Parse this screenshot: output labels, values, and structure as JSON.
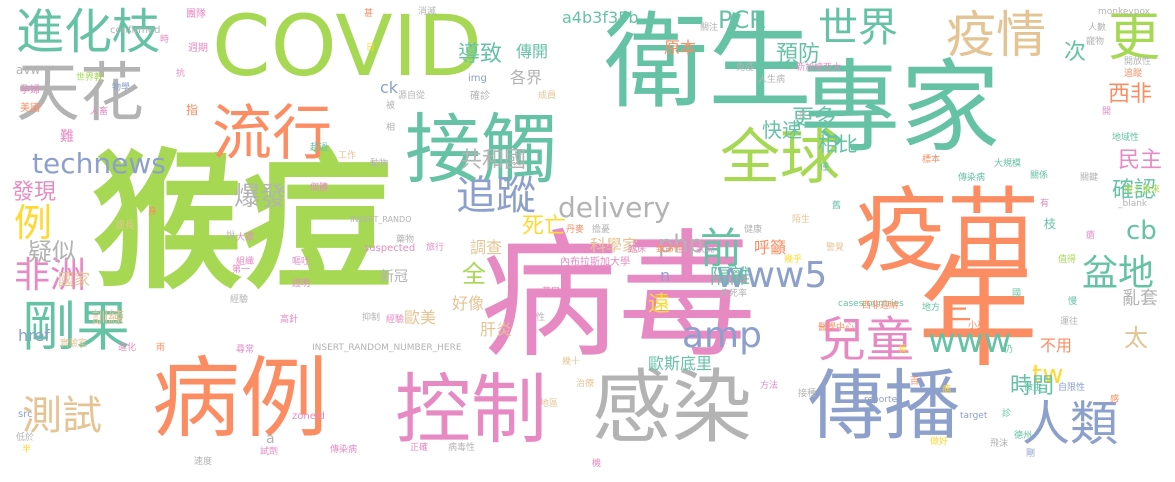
{
  "palette": {
    "green": "#a6d854",
    "orange": "#fc8d62",
    "pink": "#e78ac3",
    "teal": "#66c2a5",
    "blue": "#8da0cb",
    "yellow": "#ffd92f",
    "tan": "#e5c494",
    "gray": "#b3b3b3"
  },
  "words": [
    {
      "text": "猴痘",
      "color": "green"
    },
    {
      "text": "病毒",
      "color": "pink"
    },
    {
      "text": "專家",
      "color": "teal"
    },
    {
      "text": "衛生",
      "color": "teal"
    },
    {
      "text": "COVID",
      "color": "green"
    },
    {
      "text": "天花",
      "color": "gray"
    },
    {
      "text": "疫苗",
      "color": "orange"
    },
    {
      "text": "年",
      "color": "orange"
    },
    {
      "text": "病例",
      "color": "orange"
    },
    {
      "text": "接觸",
      "color": "teal"
    },
    {
      "text": "控制",
      "color": "pink"
    },
    {
      "text": "感染",
      "color": "gray"
    },
    {
      "text": "傳播",
      "color": "blue"
    },
    {
      "text": "全球",
      "color": "green"
    },
    {
      "text": "流行",
      "color": "orange"
    },
    {
      "text": "疫情",
      "color": "tan"
    },
    {
      "text": "世界",
      "color": "teal"
    },
    {
      "text": "進化枝",
      "color": "teal"
    },
    {
      "text": "剛果",
      "color": "teal"
    },
    {
      "text": "人類",
      "color": "blue"
    },
    {
      "text": "兒童",
      "color": "pink"
    },
    {
      "text": "測試",
      "color": "tan"
    },
    {
      "text": "追蹤",
      "color": "blue"
    },
    {
      "text": "www5",
      "color": "blue"
    },
    {
      "text": "更",
      "color": "green"
    },
    {
      "text": "technews",
      "color": "blue"
    },
    {
      "text": "例",
      "color": "yellow"
    },
    {
      "text": "非洲",
      "color": "pink"
    },
    {
      "text": "delivery",
      "color": "gray"
    },
    {
      "text": "前",
      "color": "teal"
    },
    {
      "text": "盆地",
      "color": "teal"
    },
    {
      "text": "www",
      "color": "teal"
    },
    {
      "text": "三",
      "color": "orange"
    },
    {
      "text": "amp",
      "color": "blue"
    },
    {
      "text": "tw",
      "color": "yellow"
    },
    {
      "text": "cb",
      "color": "teal"
    },
    {
      "text": "php",
      "color": "gray"
    },
    {
      "text": "太",
      "color": "tan"
    },
    {
      "text": "PCR",
      "color": "teal"
    },
    {
      "text": "a4b3f35b",
      "color": "teal"
    },
    {
      "text": "導致",
      "color": "teal"
    },
    {
      "text": "傳開",
      "color": "teal"
    },
    {
      "text": "預防",
      "color": "teal"
    },
    {
      "text": "共和國",
      "color": "gray"
    },
    {
      "text": "發現",
      "color": "pink"
    },
    {
      "text": "爆發",
      "color": "gray"
    },
    {
      "text": "疑似",
      "color": "gray"
    },
    {
      "text": "死亡",
      "color": "yellow"
    },
    {
      "text": "更多",
      "color": "teal"
    },
    {
      "text": "相比",
      "color": "teal"
    },
    {
      "text": "快速",
      "color": "teal"
    },
    {
      "text": "西非",
      "color": "orange"
    },
    {
      "text": "民主",
      "color": "pink"
    },
    {
      "text": "確認",
      "color": "teal"
    },
    {
      "text": "次",
      "color": "teal"
    },
    {
      "text": "全",
      "color": "green"
    },
    {
      "text": "隔離",
      "color": "teal"
    },
    {
      "text": "呼籲",
      "color": "orange"
    },
    {
      "text": "亂套",
      "color": "gray"
    },
    {
      "text": "時間",
      "color": "teal"
    },
    {
      "text": "歐美",
      "color": "tan"
    },
    {
      "text": "遠",
      "color": "yellow"
    },
    {
      "text": "好像",
      "color": "tan"
    },
    {
      "text": "肝炎",
      "color": "tan"
    },
    {
      "text": "調查",
      "color": "tan"
    },
    {
      "text": "科學家",
      "color": "tan"
    },
    {
      "text": "歐斯底里",
      "color": "teal"
    },
    {
      "text": "訓練",
      "color": "tan"
    },
    {
      "text": "國家",
      "color": "tan"
    },
    {
      "text": "href",
      "color": "blue"
    },
    {
      "text": "不用",
      "color": "orange"
    },
    {
      "text": "各界",
      "color": "gray"
    },
    {
      "text": "原本",
      "color": "orange"
    },
    {
      "text": "ck",
      "color": "blue"
    },
    {
      "text": "新冠",
      "color": "gray"
    },
    {
      "text": "n",
      "color": "blue"
    },
    {
      "text": "a",
      "color": "gray"
    },
    {
      "text": "INSERT_RANDOM_NUMBER_HERE",
      "color": "gray"
    },
    {
      "text": "INSERT_RANDO",
      "color": "gray"
    },
    {
      "text": "suspected",
      "color": "pink"
    },
    {
      "text": "內布拉斯加大學",
      "color": "pink"
    },
    {
      "text": "confirmed",
      "color": "gray"
    },
    {
      "text": "avw",
      "color": "gray"
    },
    {
      "text": "monkeypox",
      "color": "gray"
    },
    {
      "text": "zoneid",
      "color": "pink"
    },
    {
      "text": "src",
      "color": "blue"
    },
    {
      "text": "reported",
      "color": "blue"
    },
    {
      "text": "target",
      "color": "blue"
    },
    {
      "text": "_blank",
      "color": "gray"
    },
    {
      "text": "cases",
      "color": "teal"
    },
    {
      "text": "countries",
      "color": "teal"
    },
    {
      "text": "img",
      "color": "blue"
    },
    {
      "text": "團隊",
      "color": "pink"
    },
    {
      "text": "週期",
      "color": "pink"
    },
    {
      "text": "世界教",
      "color": "green"
    },
    {
      "text": "孕婦",
      "color": "pink"
    },
    {
      "text": "美國",
      "color": "orange"
    },
    {
      "text": "人畜",
      "color": "pink"
    },
    {
      "text": "物學",
      "color": "blue"
    },
    {
      "text": "難",
      "color": "pink"
    },
    {
      "text": "源自從",
      "color": "gray"
    },
    {
      "text": "確診",
      "color": "gray"
    },
    {
      "text": "成員",
      "color": "tan"
    },
    {
      "text": "免疫",
      "color": "gray"
    },
    {
      "text": "人生病",
      "color": "gray"
    },
    {
      "text": "新加坡亞太",
      "color": "pink"
    },
    {
      "text": "追蹤",
      "color": "orange"
    },
    {
      "text": "開放性",
      "color": "gray"
    },
    {
      "text": "寵物",
      "color": "gray"
    },
    {
      "text": "人數",
      "color": "gray"
    },
    {
      "text": "地域性",
      "color": "teal"
    },
    {
      "text": "傳染病",
      "color": "teal"
    },
    {
      "text": "大規模",
      "color": "teal"
    },
    {
      "text": "關係",
      "color": "teal"
    },
    {
      "text": "關鍵",
      "color": "gray"
    },
    {
      "text": "捲土重來",
      "color": "green"
    },
    {
      "text": "醫學中心",
      "color": "orange"
    },
    {
      "text": "西非迦納",
      "color": "orange"
    },
    {
      "text": "致命性",
      "color": "orange"
    },
    {
      "text": "狀況",
      "color": "pink"
    },
    {
      "text": "臨床",
      "color": "pink"
    },
    {
      "text": "幾乎",
      "color": "yellow"
    },
    {
      "text": "病死率",
      "color": "gray"
    },
    {
      "text": "方法",
      "color": "pink"
    },
    {
      "text": "接種",
      "color": "gray"
    },
    {
      "text": "微生",
      "color": "teal"
    },
    {
      "text": "自限性",
      "color": "blue"
    },
    {
      "text": "德州",
      "color": "teal"
    },
    {
      "text": "飛沫",
      "color": "gray"
    },
    {
      "text": "病毒性",
      "color": "gray"
    },
    {
      "text": "速度",
      "color": "gray"
    },
    {
      "text": "試劑",
      "color": "pink"
    },
    {
      "text": "低於",
      "color": "gray"
    },
    {
      "text": "正確",
      "color": "pink"
    },
    {
      "text": "實驗室",
      "color": "tan"
    },
    {
      "text": "進化",
      "color": "pink"
    },
    {
      "text": "尋常",
      "color": "pink"
    },
    {
      "text": "高針",
      "color": "pink"
    },
    {
      "text": "證明",
      "color": "pink"
    },
    {
      "text": "組織",
      "color": "pink"
    },
    {
      "text": "大眾",
      "color": "pink"
    },
    {
      "text": "嘔吐",
      "color": "pink"
    },
    {
      "text": "工作",
      "color": "tan"
    },
    {
      "text": "超過",
      "color": "teal"
    },
    {
      "text": "動物",
      "color": "gray"
    },
    {
      "text": "藥物",
      "color": "gray"
    },
    {
      "text": "丹麥",
      "color": "orange"
    },
    {
      "text": "陌生",
      "color": "tan"
    },
    {
      "text": "健康",
      "color": "gray"
    },
    {
      "text": "警覺",
      "color": "tan"
    },
    {
      "text": "標本",
      "color": "orange"
    },
    {
      "text": "小巫",
      "color": "orange"
    },
    {
      "text": "運往",
      "color": "gray"
    },
    {
      "text": "值得",
      "color": "green"
    },
    {
      "text": "做好",
      "color": "yellow"
    },
    {
      "text": "治療",
      "color": "tan"
    },
    {
      "text": "幾十",
      "color": "tan"
    },
    {
      "text": "擔憂",
      "color": "gray"
    },
    {
      "text": "經驗",
      "color": "pink"
    },
    {
      "text": "抑制",
      "color": "gray"
    },
    {
      "text": "旅行",
      "color": "pink"
    },
    {
      "text": "地區",
      "color": "tan"
    },
    {
      "text": "消滅",
      "color": "gray"
    },
    {
      "text": "關注",
      "color": "gray"
    },
    {
      "text": "抗",
      "color": "pink"
    },
    {
      "text": "提長",
      "color": "tan"
    },
    {
      "text": "地方",
      "color": "teal"
    },
    {
      "text": "有",
      "color": "pink"
    },
    {
      "text": "時",
      "color": "pink"
    },
    {
      "text": "第一",
      "color": "pink"
    },
    {
      "text": "說",
      "color": "gray"
    },
    {
      "text": "個體",
      "color": "pink"
    },
    {
      "text": "指",
      "color": "orange"
    },
    {
      "text": "傳染病",
      "color": "pink"
    },
    {
      "text": "開",
      "color": "pink"
    },
    {
      "text": "半",
      "color": "yellow"
    },
    {
      "text": "雨",
      "color": "orange"
    },
    {
      "text": "枝",
      "color": "teal"
    },
    {
      "text": "診",
      "color": "teal"
    },
    {
      "text": "國",
      "color": "teal"
    },
    {
      "text": "慢",
      "color": "teal"
    },
    {
      "text": "瘡",
      "color": "pink"
    },
    {
      "text": "性",
      "color": "gray"
    },
    {
      "text": "長",
      "color": "yellow"
    },
    {
      "text": "剛",
      "color": "blue"
    },
    {
      "text": "病",
      "color": "yellow"
    },
    {
      "text": "仍",
      "color": "teal"
    },
    {
      "text": "相",
      "color": "gray"
    },
    {
      "text": "共",
      "color": "gray"
    },
    {
      "text": "日",
      "color": "yellow"
    },
    {
      "text": "帶口",
      "color": "pink"
    },
    {
      "text": "甚",
      "color": "orange"
    },
    {
      "text": "僅",
      "color": "teal"
    },
    {
      "text": "身",
      "color": "orange"
    },
    {
      "text": "經驗",
      "color": "gray"
    },
    {
      "text": "感",
      "color": "orange"
    },
    {
      "text": "被",
      "color": "gray"
    },
    {
      "text": "舊",
      "color": "teal"
    },
    {
      "text": "百",
      "color": "orange"
    },
    {
      "text": "機",
      "color": "pink"
    }
  ]
}
